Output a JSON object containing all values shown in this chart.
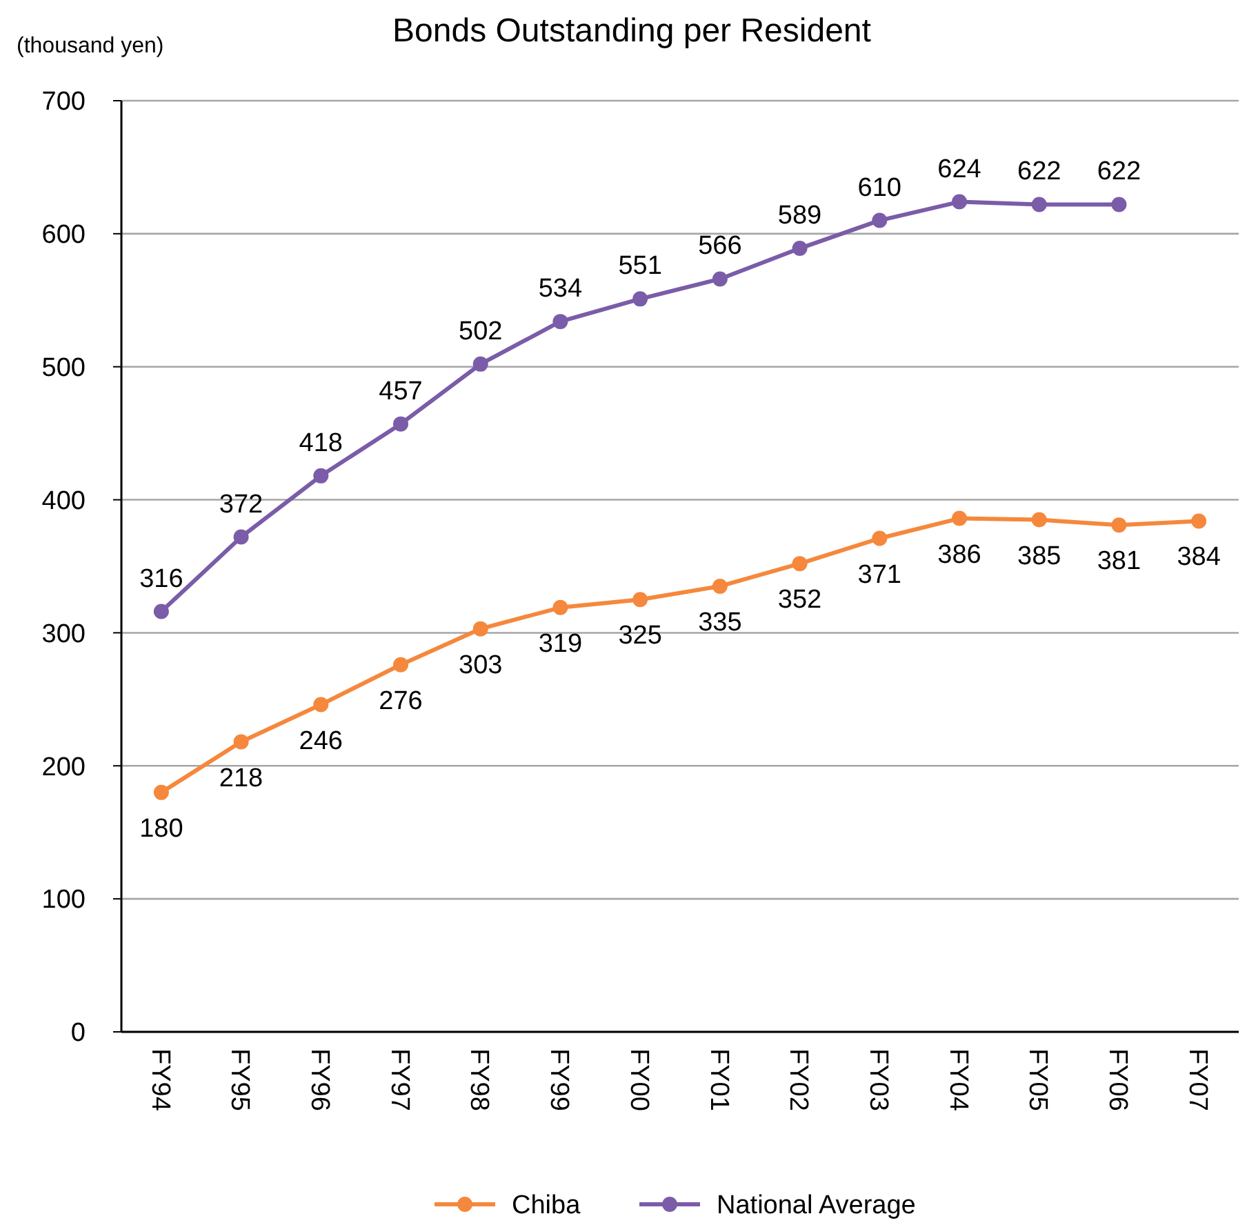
{
  "chart_data": {
    "type": "line",
    "title": "Bonds Outstanding per Resident",
    "ylabel": "(thousand yen)",
    "categories": [
      "FY94",
      "FY95",
      "FY96",
      "FY97",
      "FY98",
      "FY99",
      "FY00",
      "FY01",
      "FY02",
      "FY03",
      "FY04",
      "FY05",
      "FY06",
      "FY07"
    ],
    "series": [
      {
        "name": "Chiba",
        "color": "#f5883c",
        "values": [
          180,
          218,
          246,
          276,
          303,
          319,
          325,
          335,
          352,
          371,
          386,
          385,
          381,
          384
        ]
      },
      {
        "name": "National Average",
        "color": "#7a5ca8",
        "values": [
          316,
          372,
          418,
          457,
          502,
          534,
          551,
          566,
          589,
          610,
          624,
          622,
          622,
          null
        ]
      }
    ],
    "ylim": [
      0,
      700
    ],
    "yticks": [
      0,
      100,
      200,
      300,
      400,
      500,
      600,
      700
    ],
    "grid": "y",
    "legend": "bottom",
    "marker": "circle",
    "line_style": "solid",
    "data_labels": true
  }
}
